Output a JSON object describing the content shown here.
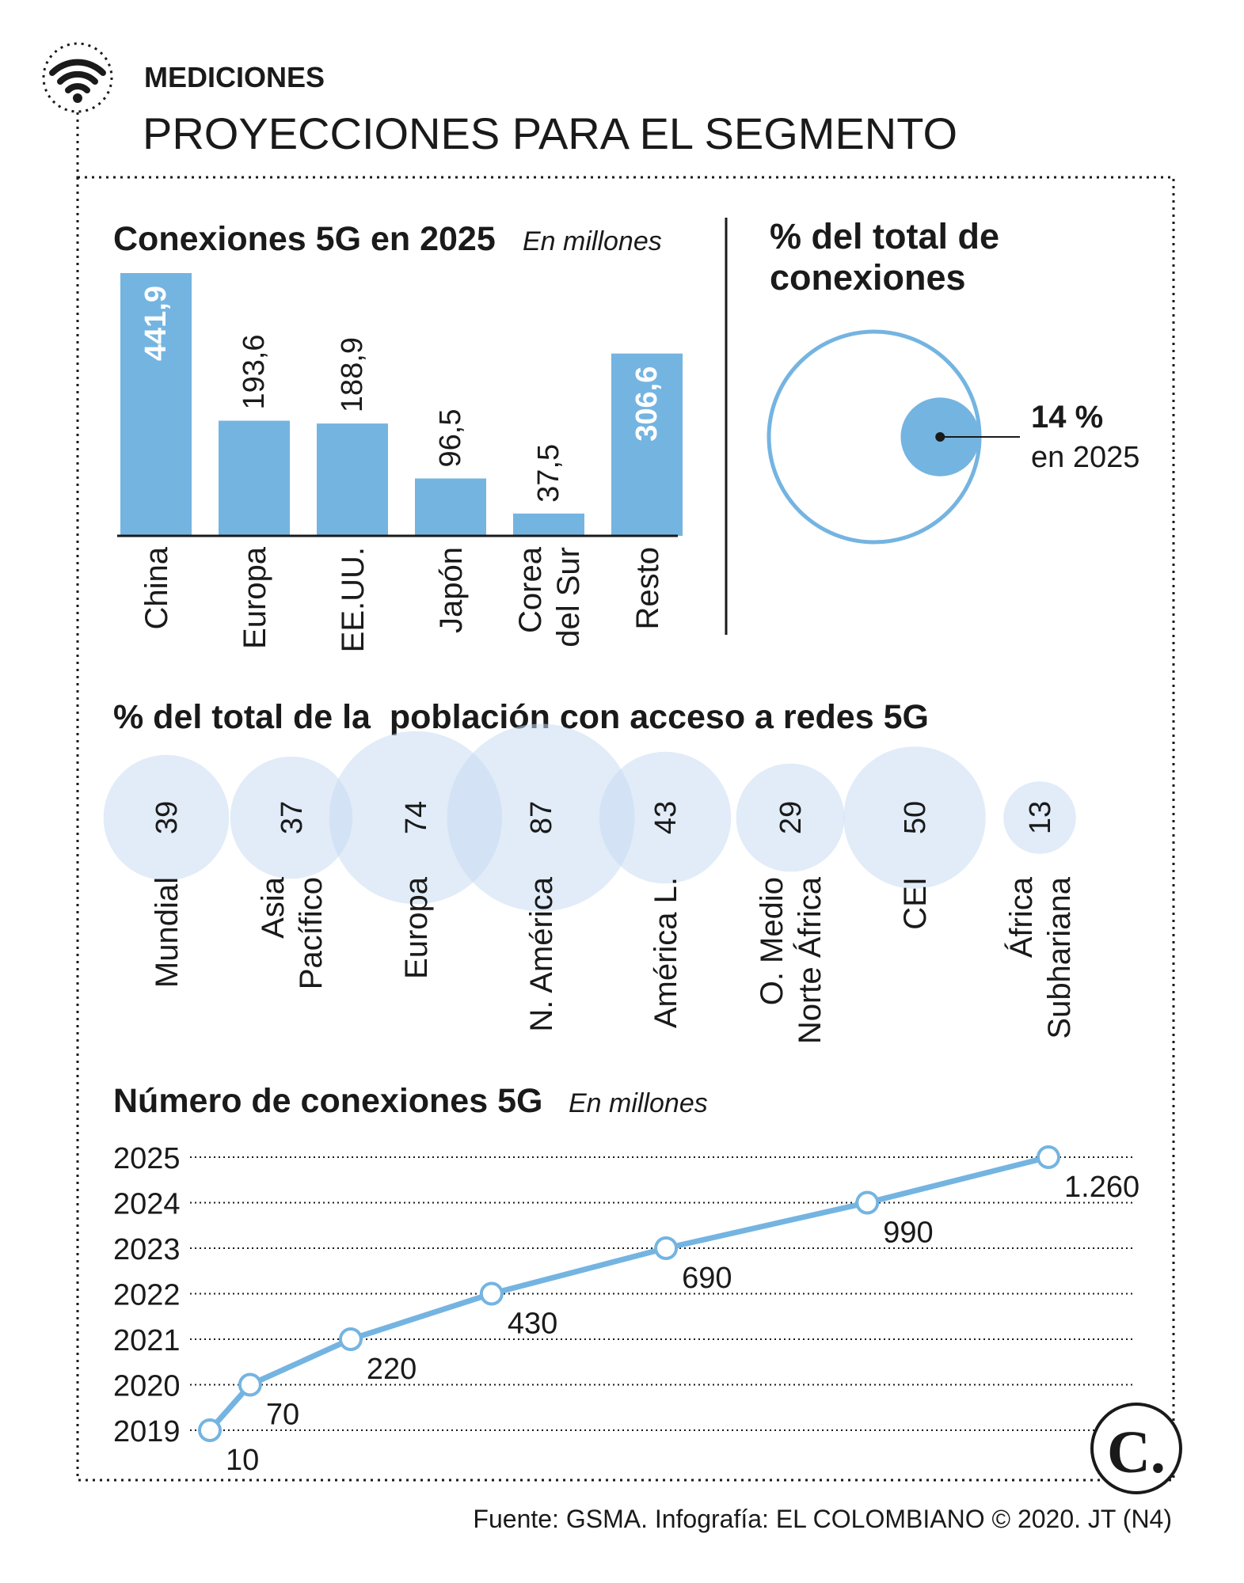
{
  "header": {
    "section": "MEDICIONES",
    "title": "PROYECCIONES PARA EL SEGMENTO",
    "icon": "wifi-icon"
  },
  "colors": {
    "bar": "#74b4e1",
    "bubble": "#c9dcf3",
    "line": "#74b4e1",
    "text": "#1a1a1a"
  },
  "chart_data": [
    {
      "type": "bar",
      "title": "Conexiones 5G en 2025",
      "subtitle": "En millones",
      "categories": [
        "China",
        "Europa",
        "EE.UU.",
        "Japón",
        "Corea\ndel Sur",
        "Resto"
      ],
      "values": [
        441.9,
        193.6,
        188.9,
        96.5,
        37.5,
        306.6
      ],
      "value_labels": [
        "441,9",
        "193,6",
        "188,9",
        "96,5",
        "37,5",
        "306,6"
      ],
      "ylim": [
        0,
        441.9
      ]
    },
    {
      "type": "pie",
      "title": "% del total de conexiones",
      "values": [
        14,
        86
      ],
      "labels": [
        "14 %",
        "en 2025"
      ]
    },
    {
      "type": "scatter",
      "title": "% del total de la  población con acceso a redes 5G",
      "categories": [
        "Mundial",
        "Asia\nPacífico",
        "Europa",
        "N. América",
        "América L.",
        "O. Medio\nNorte África",
        "CEI",
        "África\nSubhariana"
      ],
      "values": [
        39,
        37,
        74,
        87,
        43,
        29,
        50,
        13
      ]
    },
    {
      "type": "line",
      "title": "Número de conexiones 5G",
      "subtitle": "En millones",
      "x": [
        2019,
        2020,
        2021,
        2022,
        2023,
        2024,
        2025
      ],
      "y_labels": [
        "2025",
        "2024",
        "2023",
        "2022",
        "2021",
        "2020",
        "2019"
      ],
      "values": [
        10,
        70,
        220,
        430,
        690,
        990,
        1260
      ],
      "value_labels": [
        "10",
        "70",
        "220",
        "430",
        "690",
        "990",
        "1.260"
      ]
    }
  ],
  "footer": {
    "source": "Fuente: GSMA. Infografía: EL COLOMBIANO © 2020. JT (N4)",
    "logo": "C."
  }
}
